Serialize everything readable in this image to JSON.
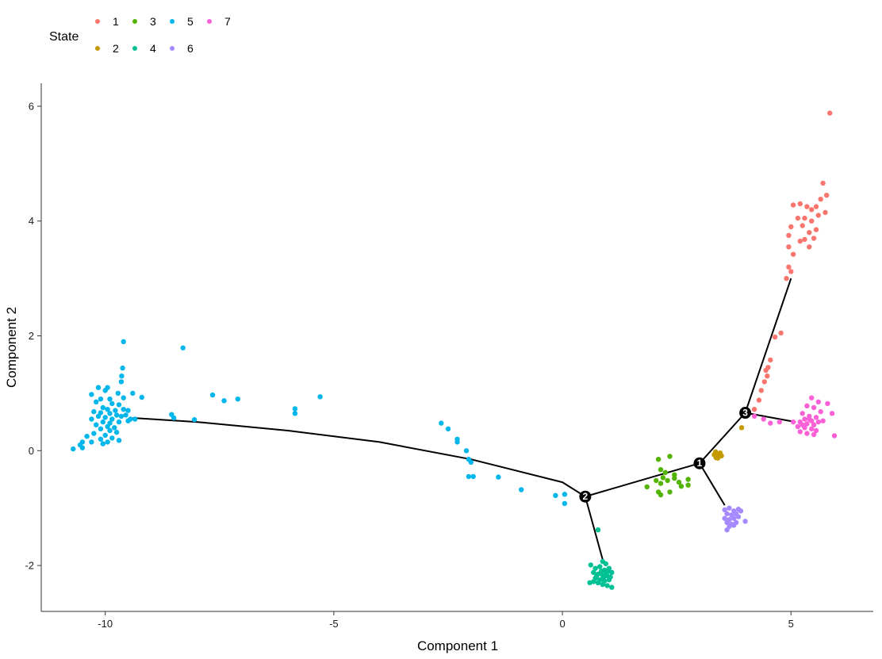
{
  "chart_data": {
    "type": "scatter",
    "xlabel": "Component 1",
    "ylabel": "Component 2",
    "xlim": [
      -11.4,
      6.8
    ],
    "ylim": [
      -2.8,
      6.4
    ],
    "x_ticks": [
      -10,
      -5,
      0,
      5
    ],
    "y_ticks": [
      -2,
      0,
      2,
      4,
      6
    ],
    "legend": {
      "title": "State",
      "position": "top-left",
      "entries": [
        "1",
        "2",
        "3",
        "4",
        "5",
        "6",
        "7"
      ]
    },
    "series": [
      {
        "name": "1",
        "color": "#F8766D",
        "points": [
          [
            5.85,
            5.88
          ],
          [
            5.7,
            4.66
          ],
          [
            5.78,
            4.45
          ],
          [
            5.65,
            4.38
          ],
          [
            5.55,
            4.25
          ],
          [
            5.75,
            4.15
          ],
          [
            5.2,
            4.3
          ],
          [
            5.35,
            4.25
          ],
          [
            5.05,
            4.28
          ],
          [
            5.45,
            4.2
          ],
          [
            5.6,
            4.1
          ],
          [
            5.3,
            4.05
          ],
          [
            5.45,
            4.0
          ],
          [
            5.25,
            3.92
          ],
          [
            5.15,
            4.05
          ],
          [
            5.55,
            3.85
          ],
          [
            5.4,
            3.8
          ],
          [
            5.0,
            3.9
          ],
          [
            5.3,
            3.68
          ],
          [
            5.5,
            3.7
          ],
          [
            4.95,
            3.75
          ],
          [
            5.2,
            3.65
          ],
          [
            4.95,
            3.55
          ],
          [
            5.4,
            3.55
          ],
          [
            5.05,
            3.42
          ],
          [
            4.95,
            3.2
          ],
          [
            5.0,
            3.12
          ],
          [
            4.9,
            3.0
          ],
          [
            4.78,
            2.05
          ],
          [
            4.65,
            1.98
          ],
          [
            4.55,
            1.58
          ],
          [
            4.5,
            1.45
          ],
          [
            4.45,
            1.4
          ],
          [
            4.48,
            1.3
          ],
          [
            4.42,
            1.2
          ],
          [
            4.35,
            1.05
          ],
          [
            4.3,
            0.88
          ],
          [
            4.2,
            0.72
          ]
        ]
      },
      {
        "name": "2",
        "color": "#C49A00",
        "points": [
          [
            3.35,
            -0.02
          ],
          [
            3.38,
            -0.06
          ],
          [
            3.42,
            -0.1
          ],
          [
            3.45,
            -0.04
          ],
          [
            3.32,
            -0.07
          ],
          [
            3.4,
            -0.13
          ],
          [
            3.48,
            -0.09
          ],
          [
            3.36,
            -0.12
          ],
          [
            3.92,
            0.4
          ]
        ]
      },
      {
        "name": "3",
        "color": "#53B400",
        "points": [
          [
            2.1,
            -0.15
          ],
          [
            2.35,
            -0.1
          ],
          [
            2.15,
            -0.33
          ],
          [
            2.25,
            -0.38
          ],
          [
            2.2,
            -0.47
          ],
          [
            2.05,
            -0.52
          ],
          [
            2.3,
            -0.52
          ],
          [
            2.45,
            -0.48
          ],
          [
            2.55,
            -0.55
          ],
          [
            2.75,
            -0.5
          ],
          [
            2.6,
            -0.62
          ],
          [
            2.75,
            -0.6
          ],
          [
            1.85,
            -0.63
          ],
          [
            2.1,
            -0.72
          ],
          [
            2.15,
            -0.77
          ],
          [
            2.35,
            -0.72
          ],
          [
            2.45,
            -0.42
          ],
          [
            2.15,
            -0.57
          ]
        ]
      },
      {
        "name": "4",
        "color": "#00C094",
        "points": [
          [
            0.78,
            -1.38
          ],
          [
            0.88,
            -1.93
          ],
          [
            0.95,
            -1.97
          ],
          [
            0.62,
            -1.99
          ],
          [
            0.72,
            -2.05
          ],
          [
            0.82,
            -2.02
          ],
          [
            0.92,
            -2.08
          ],
          [
            1.0,
            -2.1
          ],
          [
            1.08,
            -2.12
          ],
          [
            0.68,
            -2.12
          ],
          [
            0.78,
            -2.15
          ],
          [
            0.88,
            -2.17
          ],
          [
            0.98,
            -2.18
          ],
          [
            1.05,
            -2.2
          ],
          [
            0.72,
            -2.22
          ],
          [
            0.82,
            -2.25
          ],
          [
            0.92,
            -2.27
          ],
          [
            1.02,
            -2.25
          ],
          [
            0.6,
            -2.3
          ],
          [
            0.68,
            -2.28
          ],
          [
            0.78,
            -2.3
          ],
          [
            0.88,
            -2.33
          ],
          [
            0.98,
            -2.35
          ],
          [
            1.08,
            -2.38
          ],
          [
            0.85,
            -2.1
          ],
          [
            0.95,
            -2.15
          ],
          [
            1.02,
            -2.05
          ],
          [
            0.75,
            -2.18
          ],
          [
            0.9,
            -2.22
          ]
        ]
      },
      {
        "name": "5",
        "color": "#00B6EB",
        "points": [
          [
            -9.6,
            1.9
          ],
          [
            -8.3,
            1.79
          ],
          [
            -9.62,
            1.44
          ],
          [
            -9.64,
            1.3
          ],
          [
            -9.65,
            1.2
          ],
          [
            -9.95,
            1.1
          ],
          [
            -10.15,
            1.1
          ],
          [
            -10.0,
            1.05
          ],
          [
            -9.72,
            1.0
          ],
          [
            -9.6,
            0.92
          ],
          [
            -9.4,
            1.0
          ],
          [
            -9.2,
            0.93
          ],
          [
            -10.3,
            0.98
          ],
          [
            -10.1,
            0.9
          ],
          [
            -9.9,
            0.9
          ],
          [
            -10.2,
            0.85
          ],
          [
            -9.85,
            0.82
          ],
          [
            -9.7,
            0.8
          ],
          [
            -10.05,
            0.75
          ],
          [
            -9.95,
            0.72
          ],
          [
            -9.78,
            0.7
          ],
          [
            -9.6,
            0.72
          ],
          [
            -9.5,
            0.7
          ],
          [
            -10.25,
            0.68
          ],
          [
            -10.1,
            0.66
          ],
          [
            -9.9,
            0.65
          ],
          [
            -9.75,
            0.62
          ],
          [
            -9.65,
            0.6
          ],
          [
            -9.55,
            0.62
          ],
          [
            -10.15,
            0.6
          ],
          [
            -10.0,
            0.58
          ],
          [
            -9.85,
            0.55
          ],
          [
            -9.45,
            0.55
          ],
          [
            -10.3,
            0.55
          ],
          [
            -10.05,
            0.5
          ],
          [
            -9.9,
            0.48
          ],
          [
            -9.7,
            0.5
          ],
          [
            -10.2,
            0.45
          ],
          [
            -9.95,
            0.42
          ],
          [
            -9.8,
            0.4
          ],
          [
            -10.1,
            0.38
          ],
          [
            -9.9,
            0.35
          ],
          [
            -10.25,
            0.3
          ],
          [
            -9.75,
            0.32
          ],
          [
            -10.0,
            0.27
          ],
          [
            -10.4,
            0.25
          ],
          [
            -9.85,
            0.22
          ],
          [
            -10.1,
            0.2
          ],
          [
            -9.7,
            0.18
          ],
          [
            -10.3,
            0.15
          ],
          [
            -10.05,
            0.12
          ],
          [
            -10.5,
            0.15
          ],
          [
            -10.55,
            0.1
          ],
          [
            -10.7,
            0.03
          ],
          [
            -10.5,
            0.05
          ],
          [
            -9.95,
            0.15
          ],
          [
            -9.5,
            0.52
          ],
          [
            -9.35,
            0.55
          ],
          [
            -7.65,
            0.97
          ],
          [
            -7.4,
            0.87
          ],
          [
            -7.1,
            0.9
          ],
          [
            -5.3,
            0.94
          ],
          [
            -8.55,
            0.63
          ],
          [
            -8.5,
            0.57
          ],
          [
            -8.05,
            0.54
          ],
          [
            -5.85,
            0.73
          ],
          [
            -5.85,
            0.65
          ],
          [
            -2.65,
            0.48
          ],
          [
            -2.5,
            0.38
          ],
          [
            -2.3,
            0.2
          ],
          [
            -2.3,
            0.15
          ],
          [
            -2.1,
            0.0
          ],
          [
            -2.05,
            -0.15
          ],
          [
            -2.0,
            -0.2
          ],
          [
            -2.05,
            -0.45
          ],
          [
            -1.95,
            -0.45
          ],
          [
            -1.4,
            -0.46
          ],
          [
            -0.9,
            -0.68
          ],
          [
            -0.15,
            -0.78
          ],
          [
            0.05,
            -0.76
          ],
          [
            0.05,
            -0.92
          ]
        ]
      },
      {
        "name": "6",
        "color": "#A58AFF",
        "points": [
          [
            3.55,
            -1.03
          ],
          [
            3.65,
            -1.0
          ],
          [
            3.75,
            -1.05
          ],
          [
            3.85,
            -1.02
          ],
          [
            3.6,
            -1.1
          ],
          [
            3.7,
            -1.12
          ],
          [
            3.8,
            -1.1
          ],
          [
            3.55,
            -1.18
          ],
          [
            3.65,
            -1.2
          ],
          [
            3.75,
            -1.18
          ],
          [
            3.85,
            -1.15
          ],
          [
            3.6,
            -1.25
          ],
          [
            3.7,
            -1.28
          ],
          [
            3.8,
            -1.25
          ],
          [
            3.65,
            -1.32
          ],
          [
            3.75,
            -1.3
          ],
          [
            3.6,
            -1.38
          ],
          [
            4.0,
            -1.23
          ],
          [
            3.9,
            -1.05
          ]
        ]
      },
      {
        "name": "7",
        "color": "#FB61D7",
        "points": [
          [
            5.45,
            0.92
          ],
          [
            5.6,
            0.85
          ],
          [
            5.8,
            0.82
          ],
          [
            5.35,
            0.78
          ],
          [
            5.5,
            0.75
          ],
          [
            5.65,
            0.68
          ],
          [
            5.9,
            0.65
          ],
          [
            5.25,
            0.65
          ],
          [
            5.4,
            0.6
          ],
          [
            5.55,
            0.58
          ],
          [
            5.3,
            0.55
          ],
          [
            5.45,
            0.52
          ],
          [
            5.6,
            0.5
          ],
          [
            5.7,
            0.52
          ],
          [
            5.2,
            0.5
          ],
          [
            5.35,
            0.47
          ],
          [
            5.5,
            0.45
          ],
          [
            5.15,
            0.42
          ],
          [
            5.3,
            0.4
          ],
          [
            5.45,
            0.38
          ],
          [
            5.55,
            0.35
          ],
          [
            5.2,
            0.33
          ],
          [
            5.35,
            0.3
          ],
          [
            5.5,
            0.28
          ],
          [
            5.95,
            0.26
          ],
          [
            5.05,
            0.5
          ],
          [
            4.75,
            0.5
          ],
          [
            4.55,
            0.48
          ],
          [
            4.4,
            0.55
          ],
          [
            4.2,
            0.6
          ],
          [
            5.4,
            0.55
          ],
          [
            5.25,
            0.45
          ]
        ]
      }
    ],
    "trajectory": [
      [
        [
          -9.4,
          0.57
        ],
        [
          -8.0,
          0.5
        ],
        [
          -6.0,
          0.35
        ],
        [
          -4.0,
          0.15
        ],
        [
          -2.0,
          -0.15
        ],
        [
          0.0,
          -0.55
        ],
        [
          0.5,
          -0.8
        ]
      ],
      [
        [
          0.5,
          -0.8
        ],
        [
          2.0,
          -0.45
        ],
        [
          3.0,
          -0.22
        ]
      ],
      [
        [
          0.5,
          -0.8
        ],
        [
          0.9,
          -1.95
        ]
      ],
      [
        [
          3.0,
          -0.22
        ],
        [
          3.55,
          -0.95
        ]
      ],
      [
        [
          3.0,
          -0.22
        ],
        [
          4.0,
          0.66
        ]
      ],
      [
        [
          4.0,
          0.66
        ],
        [
          5.0,
          3.0
        ]
      ],
      [
        [
          4.0,
          0.66
        ],
        [
          5.1,
          0.5
        ]
      ]
    ],
    "branch_points": [
      {
        "label": "1",
        "x": 3.0,
        "y": -0.22
      },
      {
        "label": "2",
        "x": 0.5,
        "y": -0.8
      },
      {
        "label": "3",
        "x": 4.0,
        "y": 0.66
      }
    ]
  }
}
